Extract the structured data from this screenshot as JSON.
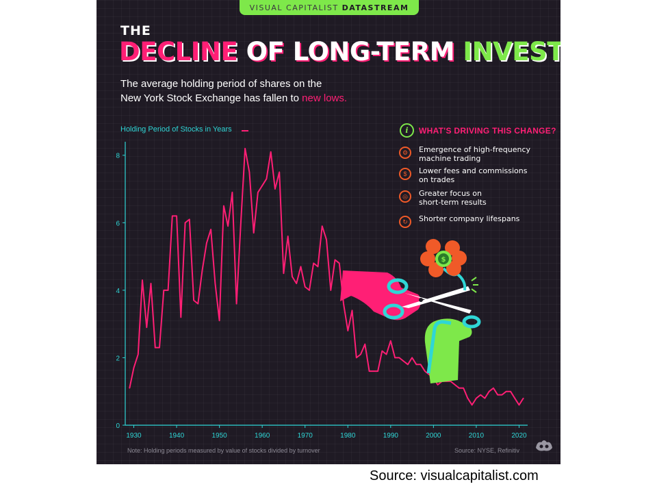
{
  "banner": {
    "brand": "VISUAL CAPITALIST",
    "product": "DATASTREAM"
  },
  "title": {
    "the": "THE",
    "part1": "DECLINE",
    "part2": " OF LONG-TERM ",
    "part3": "INVESTING"
  },
  "subtitle": {
    "line1": "The average holding period of shares on the",
    "line2": "New York Stock Exchange has fallen to ",
    "highlight": "new lows."
  },
  "drivers": {
    "title": "WHAT'S DRIVING THIS CHANGE?",
    "items": [
      {
        "icon": "gear-icon",
        "text": "Emergence of high-frequency\nmachine trading"
      },
      {
        "icon": "dollar-coin-icon",
        "text": "Lower fees and commissions\non trades"
      },
      {
        "icon": "target-icon",
        "text": "Greater focus on\nshort-term results"
      },
      {
        "icon": "cycle-icon",
        "text": "Shorter company lifespans"
      }
    ]
  },
  "footer": {
    "note": "Note: Holding periods measured by value of stocks divided by turnover",
    "source": "Source: NYSE, Refinitiv"
  },
  "caption": "Source: visualcapitalist.com",
  "colors": {
    "line": "#ff1f75",
    "axis": "#2fd6d6",
    "accent": "#7ee84a",
    "background": "#1f1a24"
  },
  "chart_data": {
    "type": "line",
    "title": "",
    "ylabel": "Holding Period of Stocks in Years",
    "xlabel": "",
    "xlim": [
      1928,
      2022
    ],
    "ylim": [
      0,
      8.4
    ],
    "xticks": [
      1930,
      1940,
      1950,
      1960,
      1970,
      1980,
      1990,
      2000,
      2010,
      2020
    ],
    "yticks": [
      0,
      2,
      4,
      6,
      8
    ],
    "grid": true,
    "series": [
      {
        "name": "",
        "x": [
          1929,
          1930,
          1931,
          1932,
          1933,
          1934,
          1935,
          1936,
          1937,
          1938,
          1939,
          1940,
          1941,
          1942,
          1943,
          1944,
          1945,
          1946,
          1947,
          1948,
          1949,
          1950,
          1951,
          1952,
          1953,
          1954,
          1955,
          1956,
          1957,
          1958,
          1959,
          1960,
          1961,
          1962,
          1963,
          1964,
          1965,
          1966,
          1967,
          1968,
          1969,
          1970,
          1971,
          1972,
          1973,
          1974,
          1975,
          1976,
          1977,
          1978,
          1979,
          1980,
          1981,
          1982,
          1983,
          1984,
          1985,
          1986,
          1987,
          1988,
          1989,
          1990,
          1991,
          1992,
          1993,
          1994,
          1995,
          1996,
          1997,
          1998,
          1999,
          2000,
          2001,
          2002,
          2003,
          2004,
          2005,
          2006,
          2007,
          2008,
          2009,
          2010,
          2011,
          2012,
          2013,
          2014,
          2015,
          2016,
          2017,
          2018,
          2019,
          2020,
          2021
        ],
        "values": [
          1.1,
          1.7,
          2.1,
          4.3,
          2.9,
          4.2,
          2.3,
          2.3,
          4.0,
          4.0,
          6.2,
          6.2,
          3.2,
          6.0,
          6.1,
          3.7,
          3.6,
          4.6,
          5.4,
          5.8,
          4.2,
          3.1,
          6.5,
          5.9,
          6.9,
          3.6,
          6.0,
          8.2,
          7.5,
          5.7,
          6.9,
          7.1,
          7.3,
          8.1,
          7.0,
          7.5,
          4.5,
          5.6,
          4.4,
          4.2,
          4.7,
          4.1,
          4.0,
          4.8,
          4.7,
          5.9,
          5.5,
          4.0,
          4.9,
          4.8,
          3.6,
          2.8,
          3.4,
          2.0,
          2.1,
          2.4,
          1.6,
          1.6,
          1.6,
          2.2,
          2.1,
          2.5,
          2.0,
          2.0,
          1.9,
          1.8,
          2.0,
          1.8,
          1.8,
          1.6,
          1.5,
          1.4,
          1.2,
          1.3,
          1.3,
          1.3,
          1.2,
          1.1,
          1.1,
          0.8,
          0.6,
          0.8,
          0.9,
          0.8,
          1.0,
          1.1,
          0.9,
          0.9,
          1.0,
          1.0,
          0.8,
          0.6,
          0.8
        ]
      }
    ]
  }
}
